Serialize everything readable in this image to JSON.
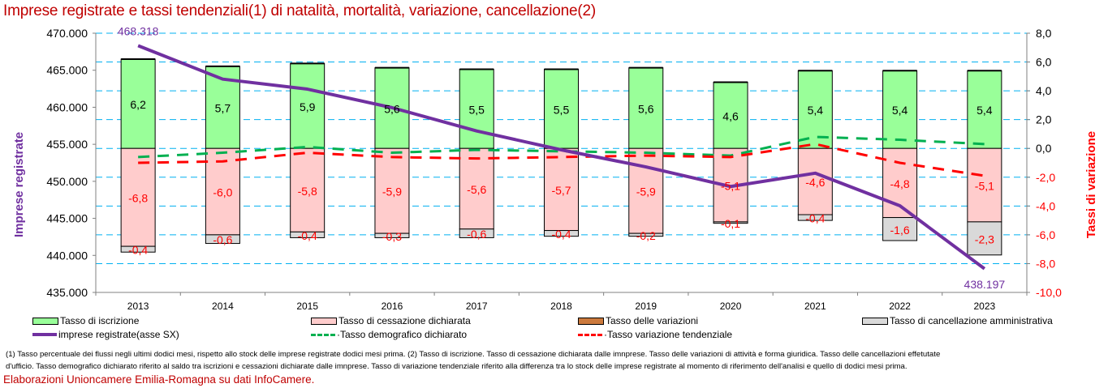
{
  "title": "Imprese registrate e tassi tendenziali(1) di natalità, mortalità, variazione, cancellazione(2)",
  "footnote_line1": "(1) Tasso percentuale dei flussi negli ultimi dodici mesi, rispetto allo stock delle imprese registrate dodici mesi prima. (2) Tasso di iscrizione. Tasso di cessazione dichiarata dalle imnprese. Tasso delle variazioni di attività e forma giuridica. Tasso delle cancellazioni effetutate",
  "footnote_line2": "d'ufficio. Tasso demografico dichiarato riferito al saldo tra iscrizioni e cessazioni dichiarate dalle imnprese. Tasso di variazione tendenziale riferito alla differenza tra lo stock delle imprese registrate al momento di riferimento dell'analisi e quello di dodici mesi prima.",
  "source": "Elaborazioni Unioncamere Emilia-Romagna su dati InfoCamere.",
  "colors": {
    "iscrizione": "#99ff99",
    "cessazione": "#ffcccc",
    "variazioni": "#cc7a3d",
    "cancellazione": "#d9d9d9",
    "imprese": "#7030a0",
    "demografico": "#00b050",
    "tendenziale": "#ff0000",
    "grid": "#00b0f0",
    "title": "#c00000"
  },
  "chart_data": {
    "type": "bar",
    "title": "Imprese registrate e tassi tendenziali(1) di natalità, mortalità, variazione, cancellazione(2)",
    "categories": [
      "2013",
      "2014",
      "2015",
      "2016",
      "2017",
      "2018",
      "2019",
      "2020",
      "2021",
      "2022",
      "2023"
    ],
    "y_left": {
      "label": "Imprese registrate",
      "range": [
        435000,
        470000
      ],
      "ticks": [
        "435.000",
        "440.000",
        "445.000",
        "450.000",
        "455.000",
        "460.000",
        "465.000",
        "470.000"
      ]
    },
    "y_right": {
      "label": "Tassi di variazione",
      "range": [
        -10,
        8
      ],
      "ticks": [
        "-10,0",
        "-8,0",
        "-6,0",
        "-4,0",
        "-2,0",
        "0,0",
        "2,0",
        "4,0",
        "6,0",
        "8,0"
      ]
    },
    "grid": true,
    "legend_placement": "bottom",
    "series": [
      {
        "name": "Tasso di iscrizione",
        "type": "stacked-bar",
        "axis": "right",
        "values": [
          6.2,
          5.7,
          5.9,
          5.6,
          5.5,
          5.5,
          5.6,
          4.6,
          5.4,
          5.4,
          5.4
        ],
        "labels": [
          "6,2",
          "5,7",
          "5,9",
          "5,6",
          "5,5",
          "5,5",
          "5,6",
          "4,6",
          "5,4",
          "5,4",
          "5,4"
        ]
      },
      {
        "name": "Tasso di cessazione dichiarata",
        "type": "stacked-bar",
        "axis": "right",
        "values": [
          -6.8,
          -6.0,
          -5.8,
          -5.9,
          -5.6,
          -5.7,
          -5.9,
          -5.1,
          -4.6,
          -4.8,
          -5.1
        ],
        "labels": [
          "-6,8",
          "-6,0",
          "-5,8",
          "-5,9",
          "-5,6",
          "-5,7",
          "-5,9",
          "-5,1",
          "-4,6",
          "-4,8",
          "-5,1"
        ]
      },
      {
        "name": "Tasso delle variazioni",
        "type": "stacked-bar",
        "axis": "right",
        "values": [
          0.0,
          0.0,
          0.0,
          0.0,
          0.0,
          0.0,
          0.0,
          0.0,
          0.0,
          0.0,
          0.0
        ]
      },
      {
        "name": "Tasso di cancellazione amministrativa",
        "type": "stacked-bar",
        "axis": "right",
        "values": [
          -0.4,
          -0.6,
          -0.4,
          -0.3,
          -0.6,
          -0.4,
          -0.2,
          -0.1,
          -0.4,
          -1.6,
          -2.3
        ],
        "labels": [
          "-0,4",
          "-0,6",
          "-0,4",
          "-0,3",
          "-0,6",
          "-0,4",
          "-0,2",
          "-0,1",
          "-0,4",
          "-1,6",
          "-2,3"
        ]
      },
      {
        "name": "imprese registrate(asse SX)",
        "type": "line",
        "axis": "left",
        "values": [
          468318,
          463800,
          462450,
          459950,
          456800,
          454250,
          451950,
          449300,
          451100,
          446700,
          438197
        ],
        "point_labels": {
          "0": "468.318",
          "10": "438.197"
        }
      },
      {
        "name": "Tasso demografico dichiarato",
        "type": "dashed-line",
        "axis": "right",
        "values": [
          -0.6,
          -0.3,
          0.1,
          -0.3,
          -0.1,
          -0.2,
          -0.3,
          -0.5,
          0.8,
          0.6,
          0.3
        ]
      },
      {
        "name": "Tasso variazione tendenziale",
        "type": "dashed-line",
        "axis": "right",
        "values": [
          -1.0,
          -0.9,
          -0.3,
          -0.6,
          -0.7,
          -0.6,
          -0.5,
          -0.6,
          0.3,
          -1.0,
          -1.9
        ]
      }
    ]
  },
  "legend": [
    {
      "label": "Tasso di iscrizione",
      "kind": "box",
      "color_key": "iscrizione"
    },
    {
      "label": "Tasso di cessazione dichiarata",
      "kind": "box",
      "color_key": "cessazione"
    },
    {
      "label": "Tasso delle variazioni",
      "kind": "box",
      "color_key": "variazioni"
    },
    {
      "label": "Tasso di cancellazione amministrativa",
      "kind": "box",
      "color_key": "cancellazione"
    },
    {
      "label": "imprese registrate(asse SX)",
      "kind": "solid",
      "color_key": "imprese"
    },
    {
      "label": "·Tasso demografico dichiarato",
      "kind": "dash",
      "color_key": "demografico"
    },
    {
      "label": "·Tasso variazione tendenziale",
      "kind": "dash",
      "color_key": "tendenziale"
    }
  ]
}
